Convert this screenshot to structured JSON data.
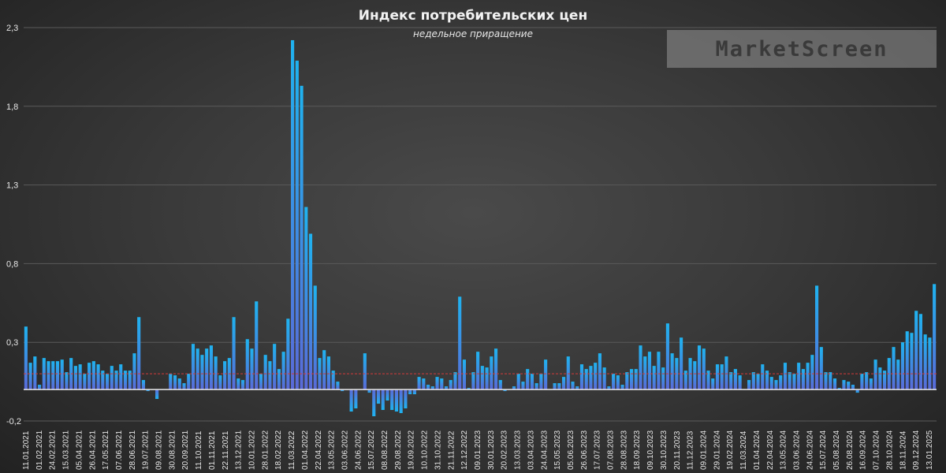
{
  "chart_data": {
    "type": "bar",
    "title": "Индекс потребительских цен",
    "subtitle": "недельное приращение",
    "watermark": "MarketScreen",
    "ylim": [
      -0.2,
      2.3
    ],
    "yticks": [
      "2,3",
      "1,8",
      "1,3",
      "0,8",
      "0,3",
      "-0,2"
    ],
    "reference_line": 0.1,
    "colors": {
      "bar_top": "#1fb3f0",
      "bar_bottom": "#5a6ad8",
      "reference": "#d23a3a",
      "axis": "#e8e8e8",
      "grid": "#5a5a5a",
      "text": "#e6e6e6"
    },
    "x_labels": [
      "11.01.2021",
      "01.02.2021",
      "24.02.2021",
      "15.03.2021",
      "05.04.2021",
      "26.04.2021",
      "17.05.2021",
      "07.06.2021",
      "28.06.2021",
      "19.07.2021",
      "09.08.2021",
      "30.08.2021",
      "20.09.2021",
      "11.10.2021",
      "01.11.2021",
      "22.11.2021",
      "13.12.2021",
      "10.01.2022",
      "28.01.2022",
      "18.02.2022",
      "11.03.2022",
      "01.04.2022",
      "22.04.2022",
      "13.05.2022",
      "03.06.2022",
      "24.06.2022",
      "15.07.2022",
      "08.08.2022",
      "29.08.2022",
      "19.09.2022",
      "10.10.2022",
      "31.10.2022",
      "21.11.2022",
      "12.12.2022",
      "09.01.2023",
      "30.01.2023",
      "20.02.2023",
      "13.03.2023",
      "03.04.2023",
      "24.04.2023",
      "15.05.2023",
      "05.06.2023",
      "26.06.2023",
      "17.07.2023",
      "07.08.2023",
      "28.08.2023",
      "18.09.2023",
      "09.10.2023",
      "30.10.2023",
      "20.11.2023",
      "11.12.2023",
      "09.01.2024",
      "29.01.2024",
      "19.02.2024",
      "11.03.2024",
      "01.04.2024",
      "22.04.2024",
      "13.05.2024",
      "03.06.2024",
      "24.06.2024",
      "15.07.2024",
      "05.08.2024",
      "26.08.2024",
      "16.09.2024",
      "07.10.2024",
      "28.10.2024",
      "18.11.2024",
      "09.12.2024",
      "13.01.2025"
    ],
    "values": [
      0.4,
      0.17,
      0.21,
      0.03,
      0.2,
      0.18,
      0.18,
      0.18,
      0.19,
      0.11,
      0.2,
      0.15,
      0.16,
      0.1,
      0.17,
      0.18,
      0.16,
      0.12,
      0.1,
      0.15,
      0.12,
      0.16,
      0.12,
      0.12,
      0.23,
      0.46,
      0.06,
      -0.01,
      0,
      -0.06,
      0,
      0,
      0.1,
      0.09,
      0.07,
      0.04,
      0.1,
      0.29,
      0.26,
      0.22,
      0.26,
      0.28,
      0.21,
      0.09,
      0.18,
      0.2,
      0.46,
      0.07,
      0.06,
      0.32,
      0.26,
      0.56,
      0.1,
      0.22,
      0.18,
      0.29,
      0.13,
      0.24,
      0.45,
      2.22,
      2.09,
      1.93,
      1.16,
      0.99,
      0.66,
      0.2,
      0.25,
      0.21,
      0.12,
      0.05,
      -0.01,
      0,
      -0.14,
      -0.12,
      0,
      0.23,
      -0.02,
      -0.17,
      -0.09,
      -0.13,
      -0.07,
      -0.13,
      -0.14,
      -0.15,
      -0.12,
      -0.03,
      -0.03,
      0.08,
      0.07,
      0.03,
      0.02,
      0.08,
      0.07,
      0.02,
      0.06,
      0.11,
      0.59,
      0.19,
      0.01,
      0.11,
      0.24,
      0.15,
      0.14,
      0.21,
      0.26,
      0.06,
      -0.01,
      0,
      0.02,
      0.1,
      0.05,
      0.13,
      0.1,
      0.04,
      0.1,
      0.19,
      0,
      0.04,
      0.04,
      0.08,
      0.21,
      0.05,
      0.02,
      0.16,
      0.13,
      0.15,
      0.17,
      0.23,
      0.14,
      0.02,
      0.1,
      0.09,
      0.03,
      0.11,
      0.13,
      0.13,
      0.28,
      0.21,
      0.24,
      0.15,
      0.24,
      0.14,
      0.42,
      0.23,
      0.2,
      0.33,
      0.12,
      0.2,
      0.18,
      0.28,
      0.26,
      0.12,
      0.07,
      0.16,
      0.16,
      0.21,
      0.11,
      0.13,
      0.09,
      0,
      0.06,
      0.11,
      0.1,
      0.16,
      0.12,
      0.08,
      0.06,
      0.09,
      0.17,
      0.11,
      0.1,
      0.17,
      0.13,
      0.17,
      0.22,
      0.66,
      0.27,
      0.11,
      0.11,
      0.07,
      0.01,
      0.06,
      0.05,
      0.03,
      -0.02,
      0.1,
      0.11,
      0.07,
      0.19,
      0.14,
      0.12,
      0.2,
      0.27,
      0.19,
      0.3,
      0.37,
      0.36,
      0.5,
      0.48,
      0.35,
      0.33,
      0.67
    ]
  }
}
